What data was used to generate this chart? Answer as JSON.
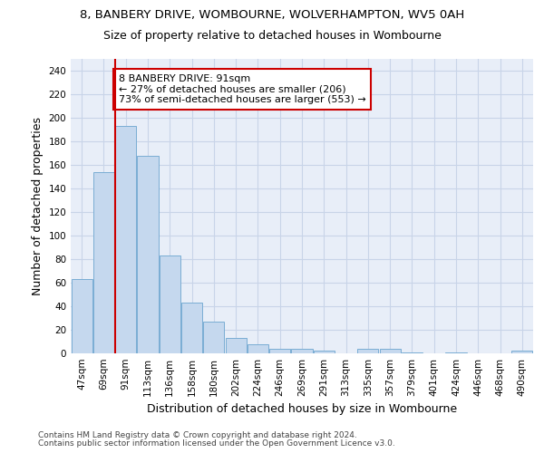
{
  "title_line1": "8, BANBERY DRIVE, WOMBOURNE, WOLVERHAMPTON, WV5 0AH",
  "title_line2": "Size of property relative to detached houses in Wombourne",
  "xlabel": "Distribution of detached houses by size in Wombourne",
  "ylabel": "Number of detached properties",
  "categories": [
    "47sqm",
    "69sqm",
    "91sqm",
    "113sqm",
    "136sqm",
    "158sqm",
    "180sqm",
    "202sqm",
    "224sqm",
    "246sqm",
    "269sqm",
    "291sqm",
    "313sqm",
    "335sqm",
    "357sqm",
    "379sqm",
    "401sqm",
    "424sqm",
    "446sqm",
    "468sqm",
    "490sqm"
  ],
  "values": [
    63,
    154,
    193,
    168,
    83,
    43,
    27,
    13,
    8,
    4,
    4,
    2,
    0,
    4,
    4,
    1,
    0,
    1,
    0,
    0,
    2
  ],
  "bar_color": "#c5d8ee",
  "bar_edge_color": "#7aadd4",
  "highlight_bar_index": 2,
  "highlight_line_color": "#cc0000",
  "annotation_text": "8 BANBERY DRIVE: 91sqm\n← 27% of detached houses are smaller (206)\n73% of semi-detached houses are larger (553) →",
  "annotation_box_color": "#ffffff",
  "annotation_box_edge_color": "#cc0000",
  "ylim": [
    0,
    250
  ],
  "yticks": [
    0,
    20,
    40,
    60,
    80,
    100,
    120,
    140,
    160,
    180,
    200,
    220,
    240
  ],
  "grid_color": "#c8d4e8",
  "background_color": "#e8eef8",
  "footer_line1": "Contains HM Land Registry data © Crown copyright and database right 2024.",
  "footer_line2": "Contains public sector information licensed under the Open Government Licence v3.0.",
  "title_fontsize": 9.5,
  "subtitle_fontsize": 9,
  "axis_label_fontsize": 9,
  "tick_fontsize": 7.5,
  "annotation_fontsize": 8,
  "footer_fontsize": 6.5
}
